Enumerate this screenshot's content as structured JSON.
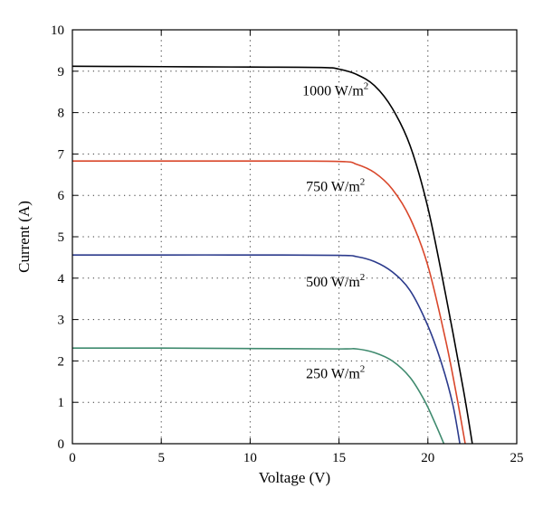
{
  "chart_data": {
    "type": "line",
    "title": "",
    "xlabel": "Voltage (V)",
    "ylabel": "Current (A)",
    "xlim": [
      0,
      25
    ],
    "ylim": [
      0,
      10
    ],
    "xticks": [
      0,
      5,
      10,
      15,
      20,
      25
    ],
    "yticks": [
      0,
      1,
      2,
      3,
      4,
      5,
      6,
      7,
      8,
      9,
      10
    ],
    "grid": true,
    "grid_style": "dotted",
    "legend": "none",
    "series": [
      {
        "label": "1000 W/m",
        "label_sup": "2",
        "color": "#000000",
        "x": [
          0,
          5,
          10,
          14,
          15,
          16,
          17,
          18,
          19,
          20,
          21,
          22,
          22.5
        ],
        "y": [
          9.12,
          9.11,
          9.1,
          9.09,
          9.05,
          8.92,
          8.65,
          8.1,
          7.2,
          5.7,
          3.6,
          1.3,
          0
        ]
      },
      {
        "label": "750 W/m",
        "label_sup": "2",
        "color": "#d9472b",
        "x": [
          0,
          5,
          10,
          15,
          16,
          17,
          18,
          19,
          20,
          21,
          21.6,
          22.1
        ],
        "y": [
          6.83,
          6.83,
          6.83,
          6.82,
          6.75,
          6.55,
          6.15,
          5.45,
          4.3,
          2.5,
          1.2,
          0
        ]
      },
      {
        "label": "500 W/m",
        "label_sup": "2",
        "color": "#2b3a8c",
        "x": [
          0,
          5,
          10,
          15,
          16,
          17,
          18,
          19,
          20,
          20.8,
          21.4,
          21.8
        ],
        "y": [
          4.56,
          4.56,
          4.56,
          4.55,
          4.52,
          4.4,
          4.15,
          3.7,
          2.85,
          1.9,
          0.95,
          0
        ]
      },
      {
        "label": "250 W/m",
        "label_sup": "2",
        "color": "#3f8a6e",
        "x": [
          0,
          5,
          10,
          15,
          16,
          17,
          18,
          19,
          19.8,
          20.4,
          20.9
        ],
        "y": [
          2.31,
          2.31,
          2.3,
          2.29,
          2.29,
          2.2,
          2.0,
          1.6,
          1.05,
          0.5,
          0
        ]
      }
    ],
    "annotations": [
      {
        "text": "1000 W/m",
        "sup": "2",
        "x": 14.8,
        "y": 8.42
      },
      {
        "text": "750 W/m",
        "sup": "2",
        "x": 14.8,
        "y": 6.1
      },
      {
        "text": "500 W/m",
        "sup": "2",
        "x": 14.8,
        "y": 3.8
      },
      {
        "text": "250 W/m",
        "sup": "2",
        "x": 14.8,
        "y": 1.58
      }
    ]
  }
}
